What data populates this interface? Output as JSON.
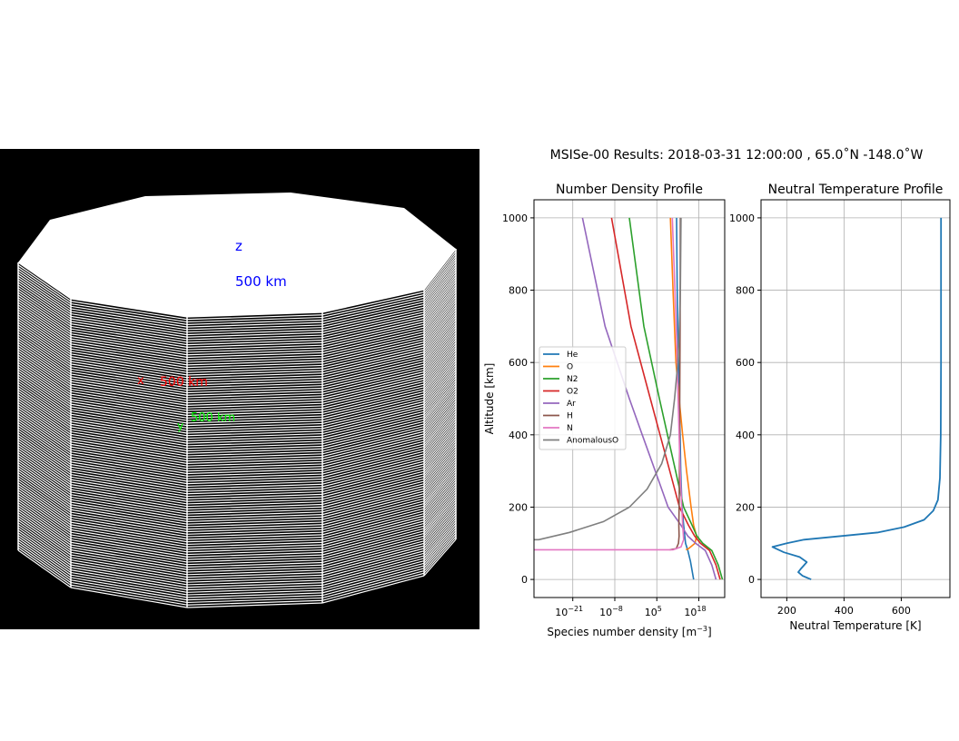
{
  "render3d": {
    "labels": {
      "z_axis": "z",
      "z_dist": "500 km",
      "x_axis": "x",
      "x_dist": "500 km",
      "y_axis": "y",
      "y_dist": "500 km"
    },
    "colors": {
      "background": "#000000",
      "cap": "#ffffff",
      "stripes": "#ffffff",
      "z": "#0000ff",
      "x": "#ff0000",
      "y": "#00ff00"
    }
  },
  "figure": {
    "suptitle": "MSISe-00 Results: 2018-03-31 12:00:00 , 65.0˚N -148.0˚W"
  },
  "chart_data": [
    {
      "type": "line",
      "title": "Number Density Profile",
      "xlabel": "Species number density [m",
      "xlabel_exp": "−3",
      "xlabel_end": "]",
      "ylabel": "Altitude [km]",
      "xscale": "log",
      "xlim_log10": [
        -33,
        26
      ],
      "ylim": [
        -50,
        1050
      ],
      "xticks": [
        {
          "base": "10",
          "exp": "−21",
          "log10": -21
        },
        {
          "base": "10",
          "exp": "−8",
          "log10": -8
        },
        {
          "base": "10",
          "exp": "5",
          "log10": 5
        },
        {
          "base": "10",
          "exp": "18",
          "log10": 18
        }
      ],
      "yticks": [
        "0",
        "200",
        "400",
        "600",
        "800",
        "1000"
      ],
      "grid": true,
      "legend_position": "center-left",
      "series": [
        {
          "name": "He",
          "color": "#1f77b4",
          "log10": [
            16.4,
            15.4,
            14.6,
            13.9,
            13.3,
            12.8,
            12.4,
            12.2,
            11.9,
            11.7,
            11.5,
            11.3,
            11.1
          ],
          "altitude": [
            0,
            50,
            80,
            100,
            150,
            200,
            300,
            400,
            500,
            600,
            700,
            800,
            1000
          ]
        },
        {
          "name": "O",
          "color": "#ff7f0e",
          "log10": [
            14.0,
            14.8,
            16.8,
            17.3,
            16.4,
            15.6,
            14.2,
            13.0,
            11.9,
            10.9,
            10.0,
            9.2
          ],
          "altitude": [
            82,
            85,
            100,
            120,
            150,
            200,
            300,
            400,
            500,
            600,
            800,
            1000
          ]
        },
        {
          "name": "N2",
          "color": "#2ca02c",
          "log10": [
            25.3,
            24.0,
            22.0,
            19.2,
            17.4,
            15.9,
            13.3,
            10.8,
            8.3,
            5.8,
            1.0,
            -3.5
          ],
          "altitude": [
            0,
            40,
            80,
            100,
            120,
            150,
            200,
            300,
            400,
            500,
            700,
            1000
          ]
        },
        {
          "name": "O2",
          "color": "#d62728",
          "log10": [
            24.6,
            23.3,
            21.3,
            18.5,
            16.7,
            14.8,
            12.0,
            9.0,
            6.0,
            3.0,
            -3.0,
            -9.0
          ],
          "altitude": [
            0,
            40,
            80,
            100,
            120,
            150,
            200,
            300,
            400,
            500,
            700,
            1000
          ]
        },
        {
          "name": "Ar",
          "color": "#9467bd",
          "log10": [
            23.3,
            22.0,
            20.0,
            17.0,
            14.6,
            12.5,
            8.5,
            4.5,
            0.5,
            -3.5,
            -11.0,
            -18.0
          ],
          "altitude": [
            0,
            40,
            80,
            100,
            120,
            150,
            200,
            300,
            400,
            500,
            700,
            1000
          ]
        },
        {
          "name": "H",
          "color": "#8c564b",
          "log10": [
            9.0,
            11.0,
            11.7,
            11.9,
            11.8,
            11.9,
            12.0,
            12.1,
            12.2,
            12.3
          ],
          "altitude": [
            82,
            85,
            100,
            120,
            150,
            200,
            300,
            500,
            700,
            1000
          ]
        },
        {
          "name": "N",
          "color": "#e377c2",
          "log10": [
            -33.0,
            10.0,
            12.5,
            13.3,
            13.0,
            12.7,
            12.2,
            11.6,
            11.0,
            10.4,
            9.8
          ],
          "altitude": [
            82,
            82,
            90,
            110,
            150,
            200,
            300,
            500,
            700,
            850,
            1000
          ]
        },
        {
          "name": "AnomalousO",
          "color": "#7f7f7f",
          "log10": [
            -33.0,
            -31.5,
            -22.0,
            -11.5,
            -3.5,
            2.0,
            6.5,
            9.2,
            10.5,
            11.5,
            12.0,
            12.3,
            12.5
          ],
          "altitude": [
            110,
            110,
            130,
            160,
            200,
            250,
            320,
            400,
            500,
            600,
            700,
            800,
            1000
          ]
        }
      ]
    },
    {
      "type": "line",
      "title": "Neutral Temperature Profile",
      "xlabel": "Neutral Temperature [K]",
      "xlim": [
        110,
        770
      ],
      "ylim": [
        -50,
        1050
      ],
      "xticks": [
        "200",
        "400",
        "600"
      ],
      "yticks": [
        "0",
        "200",
        "400",
        "600",
        "800",
        "1000"
      ],
      "grid": true,
      "series": [
        {
          "name": "Temperature",
          "color": "#1f77b4",
          "temperature": [
            285,
            255,
            240,
            250,
            270,
            245,
            190,
            150,
            200,
            260,
            390,
            520,
            610,
            680,
            712,
            728,
            735,
            738,
            739,
            739,
            739
          ],
          "altitude": [
            0,
            10,
            20,
            30,
            48,
            62,
            75,
            90,
            100,
            110,
            120,
            130,
            145,
            165,
            190,
            220,
            280,
            400,
            600,
            800,
            1000
          ]
        }
      ]
    }
  ]
}
